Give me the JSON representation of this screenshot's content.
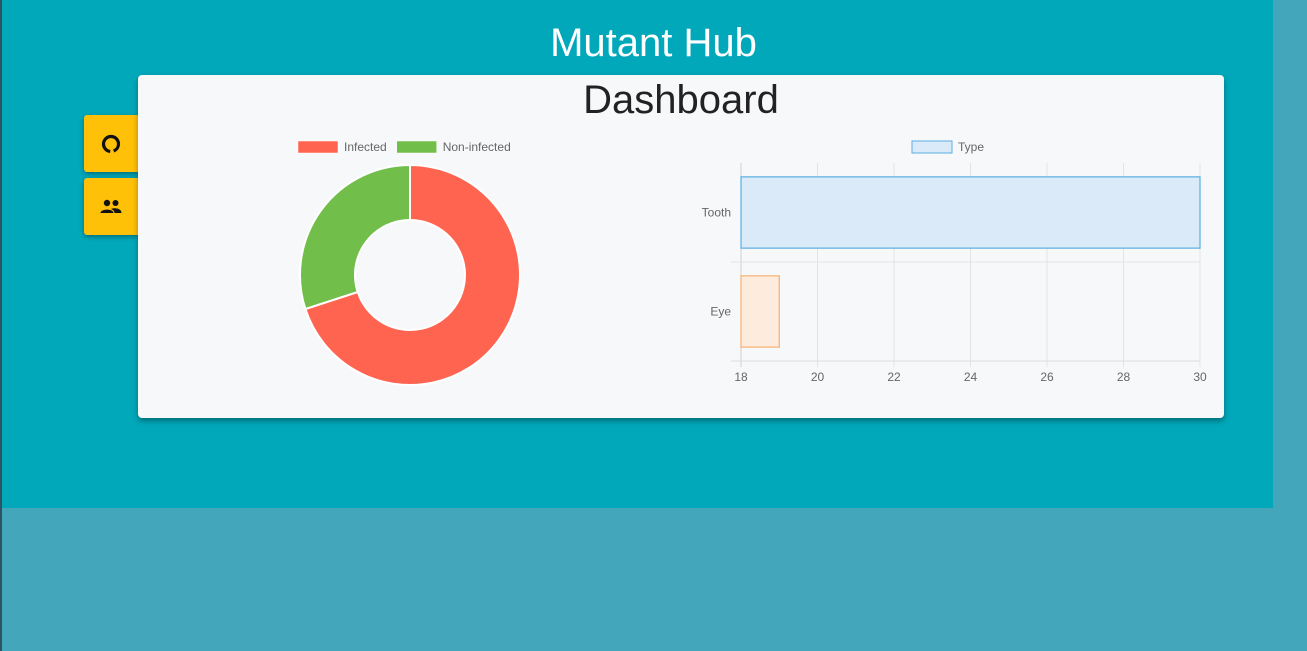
{
  "app": {
    "title": "Mutant Hub"
  },
  "dashboard": {
    "title": "Dashboard"
  },
  "sidebar": {
    "items": [
      {
        "icon": "donut-chart-icon"
      },
      {
        "icon": "people-icon"
      }
    ]
  },
  "colors": {
    "page_bg": "#43a6ba",
    "app_bg": "#00a8ba",
    "card_bg": "#f7f8fa",
    "sidebar_button": "#ffc107",
    "infected": "#ff6450",
    "non_infected": "#72be4a",
    "tooth_fill": "#daeaf8",
    "tooth_border": "#5aaee2",
    "eye_fill": "#fdebdd",
    "eye_border": "#f8b070"
  },
  "chart_data": [
    {
      "type": "pie",
      "variant": "doughnut",
      "legend_position": "top",
      "labels": [
        "Infected",
        "Non-infected"
      ],
      "values": [
        70,
        30
      ]
    },
    {
      "type": "bar",
      "orientation": "horizontal",
      "legend_position": "top",
      "series": [
        {
          "name": "Type",
          "values": [
            30,
            19
          ]
        }
      ],
      "categories": [
        "Tooth",
        "Eye"
      ],
      "xlim": [
        18,
        30
      ],
      "xticks": [
        18,
        20,
        22,
        24,
        26,
        28,
        30
      ],
      "grid": true
    }
  ]
}
